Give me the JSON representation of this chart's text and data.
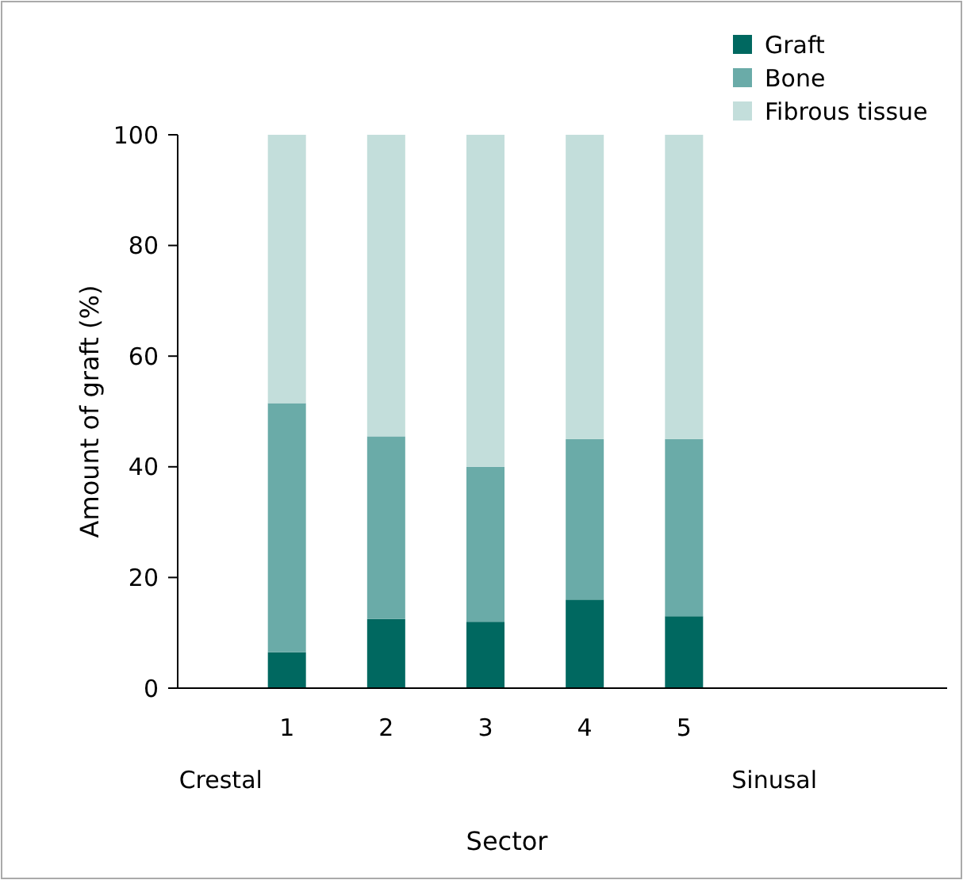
{
  "chart_data": {
    "type": "bar",
    "stacked": true,
    "xlabel": "Sector",
    "ylabel": "Amount of graft (%)",
    "categories": [
      "1",
      "2",
      "3",
      "4",
      "5"
    ],
    "series": [
      {
        "name": "Graft",
        "color": "#006860",
        "values": [
          6.5,
          12.5,
          12,
          16,
          13
        ]
      },
      {
        "name": "Bone",
        "color": "#6aaba8",
        "values": [
          45,
          33,
          28,
          29,
          32
        ]
      },
      {
        "name": "Fibrous tissue",
        "color": "#c3dedb",
        "values": [
          48.5,
          54.5,
          60,
          55,
          55
        ]
      }
    ],
    "ylim": [
      0,
      100
    ],
    "yticks": [
      0,
      20,
      40,
      60,
      80,
      100
    ],
    "grid": false,
    "legend": "top right",
    "annotations": [
      "Crestal",
      "Sinusal"
    ]
  }
}
